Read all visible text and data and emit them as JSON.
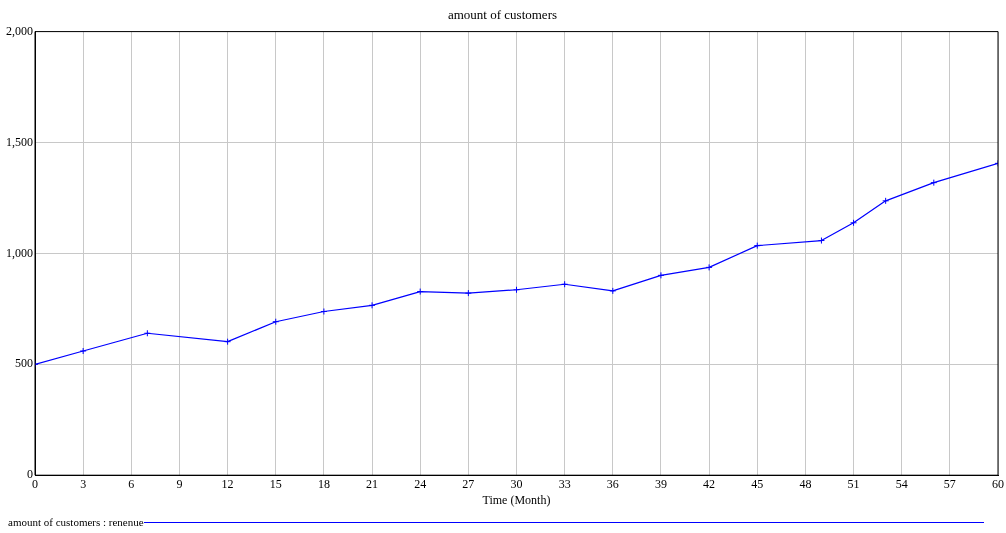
{
  "chart_data": {
    "type": "line",
    "title": "amount of customers",
    "xlabel": "Time (Month)",
    "x": [
      0,
      3,
      7,
      12,
      15,
      18,
      21,
      24,
      27,
      30,
      33,
      36,
      39,
      42,
      45,
      49,
      51,
      53,
      56,
      60
    ],
    "series": [
      {
        "name": "amount of customers : renenue",
        "color": "#0000ff",
        "values": [
          500,
          560,
          640,
          602,
          692,
          738,
          766,
          828,
          821,
          836,
          861,
          831,
          901,
          937,
          1035,
          1058,
          1138,
          1237,
          1319,
          1406
        ]
      }
    ],
    "xlim": [
      0,
      60
    ],
    "xticks": [
      0,
      3,
      6,
      9,
      12,
      15,
      18,
      21,
      24,
      27,
      30,
      33,
      36,
      39,
      42,
      45,
      48,
      51,
      54,
      57,
      60
    ],
    "ylim": [
      0,
      2000
    ],
    "yticks": [
      0,
      {
        "value": 500,
        "label": "500"
      },
      {
        "value": 1000,
        "label": "1,000"
      },
      {
        "value": 1500,
        "label": "1,500"
      },
      {
        "value": 2000,
        "label": "2,000"
      }
    ],
    "grid": true,
    "legend": "bottom",
    "marker": "cross",
    "line_style": "solid"
  }
}
